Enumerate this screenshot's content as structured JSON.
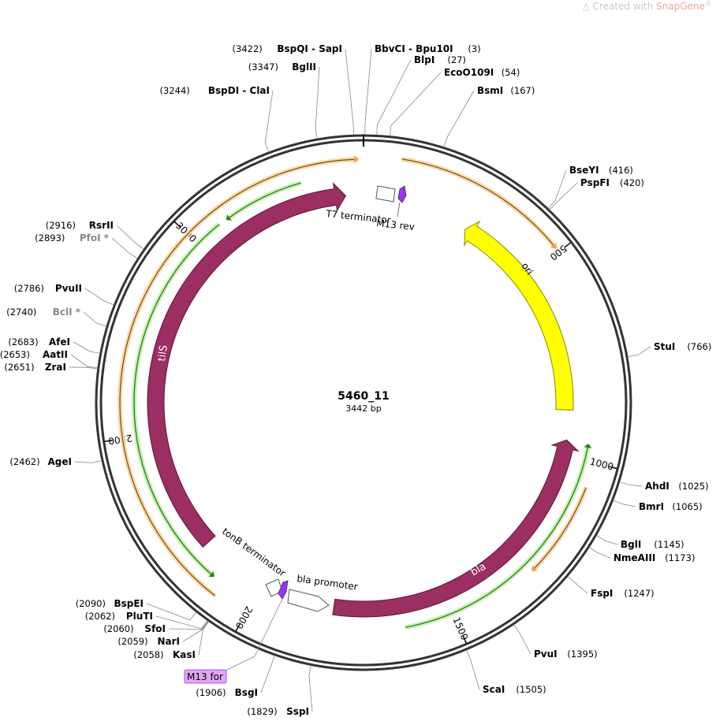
{
  "watermark": {
    "prefix": "Created with ",
    "brand": "SnapGene",
    "mark": "®"
  },
  "plasmid": {
    "name": "5460_11",
    "length_label": "3442 bp",
    "length_bp": 3442
  },
  "colors": {
    "backbone": "#333333",
    "tilS_bla": "#9b2e62",
    "ori": "#ffff00",
    "primer_bind": "#6ad14a",
    "orange_arc": "#f3a23c",
    "purple_small": "#9b30ff",
    "m13_for_badge": "#e2a6f2",
    "gray_enzyme": "#8a8a8a"
  },
  "ticks": [
    {
      "bp": 500,
      "label": "500"
    },
    {
      "bp": 1000,
      "label": "1000"
    },
    {
      "bp": 1500,
      "label": "1500"
    },
    {
      "bp": 2000,
      "label": "2000"
    },
    {
      "bp": 2500,
      "label": "2500"
    },
    {
      "bp": 3000,
      "label": "3000"
    }
  ],
  "enzymes": [
    {
      "name": "BspQI - SapI",
      "pos": "(3422)",
      "bp": 3422
    },
    {
      "name": "BglII",
      "pos": "(3347)",
      "bp": 3347
    },
    {
      "name": "BspDI - ClaI",
      "pos": "(3244)",
      "bp": 3244
    },
    {
      "name": "BbvCI - Bpu10I",
      "pos": "(3)",
      "bp": 3
    },
    {
      "name": "BlpI",
      "pos": "(27)",
      "bp": 27
    },
    {
      "name": "EcoO109I",
      "pos": "(54)",
      "bp": 54
    },
    {
      "name": "BsmI",
      "pos": "(167)",
      "bp": 167
    },
    {
      "name": "BseYI",
      "pos": "(416)",
      "bp": 416
    },
    {
      "name": "PspFI",
      "pos": "(420)",
      "bp": 420
    },
    {
      "name": "StuI",
      "pos": "(766)",
      "bp": 766
    },
    {
      "name": "AhdI",
      "pos": "(1025)",
      "bp": 1025
    },
    {
      "name": "BmrI",
      "pos": "(1065)",
      "bp": 1065
    },
    {
      "name": "BglI",
      "pos": "(1145)",
      "bp": 1145
    },
    {
      "name": "NmeAIII",
      "pos": "(1173)",
      "bp": 1173
    },
    {
      "name": "FspI",
      "pos": "(1247)",
      "bp": 1247
    },
    {
      "name": "PvuI",
      "pos": "(1395)",
      "bp": 1395
    },
    {
      "name": "ScaI",
      "pos": "(1505)",
      "bp": 1505
    },
    {
      "name": "SspI",
      "pos": "(1829)",
      "bp": 1829
    },
    {
      "name": "BsgI",
      "pos": "(1906)",
      "bp": 1906
    },
    {
      "name": "KasI",
      "pos": "(2058)",
      "bp": 2058
    },
    {
      "name": "NarI",
      "pos": "(2059)",
      "bp": 2059
    },
    {
      "name": "SfoI",
      "pos": "(2060)",
      "bp": 2060
    },
    {
      "name": "PluTI",
      "pos": "(2062)",
      "bp": 2062
    },
    {
      "name": "BspEI",
      "pos": "(2090)",
      "bp": 2090
    },
    {
      "name": "AgeI",
      "pos": "(2462)",
      "bp": 2462
    },
    {
      "name": "ZraI",
      "pos": "(2651)",
      "bp": 2651
    },
    {
      "name": "AatII",
      "pos": "(2653)",
      "bp": 2653
    },
    {
      "name": "AfeI",
      "pos": "(2683)",
      "bp": 2683
    },
    {
      "name": "BclI *",
      "pos": "(2740)",
      "bp": 2740,
      "gray": true
    },
    {
      "name": "PvuII",
      "pos": "(2786)",
      "bp": 2786
    },
    {
      "name": "PfoI *",
      "pos": "(2893)",
      "bp": 2893,
      "gray": true
    },
    {
      "name": "RsrII",
      "pos": "(2916)",
      "bp": 2916
    }
  ],
  "features": [
    {
      "name": "ori",
      "type": "origin"
    },
    {
      "name": "tilS",
      "type": "cds"
    },
    {
      "name": "bla",
      "type": "cds"
    },
    {
      "name": "T7 terminator",
      "type": "terminator"
    },
    {
      "name": "M13 rev",
      "type": "primer"
    },
    {
      "name": "tonB terminator",
      "type": "terminator"
    },
    {
      "name": "bla promoter",
      "type": "promoter"
    },
    {
      "name": "M13 for",
      "type": "primer"
    }
  ]
}
